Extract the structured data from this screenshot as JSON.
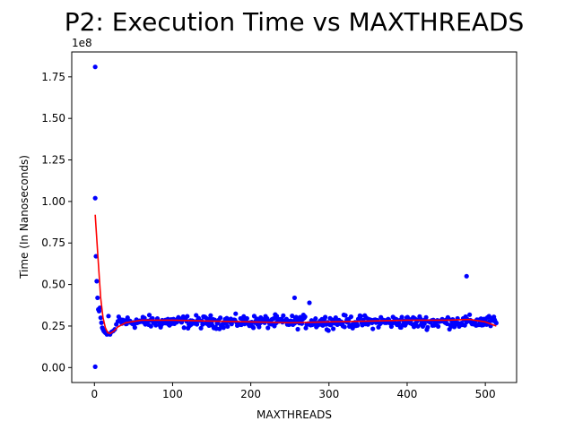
{
  "chart_data": {
    "type": "scatter",
    "title": "P2: Execution Time vs MAXTHREADS",
    "xlabel": "MAXTHREADS",
    "ylabel": "Time (In Nanoseconds)",
    "y_offset_label": "1e8",
    "xlim": [
      -29,
      540
    ],
    "ylim": [
      -0.09,
      1.9
    ],
    "x_ticks": [
      0,
      100,
      200,
      300,
      400,
      500
    ],
    "x_tick_labels": [
      "0",
      "100",
      "200",
      "300",
      "400",
      "500"
    ],
    "y_ticks": [
      0.0,
      0.25,
      0.5,
      0.75,
      1.0,
      1.25,
      1.5,
      1.75
    ],
    "y_tick_labels": [
      "0.00",
      "0.25",
      "0.50",
      "0.75",
      "1.00",
      "1.25",
      "1.50",
      "1.75"
    ],
    "grid": false,
    "scatter_color": "#0000ff",
    "trend_color": "#ff0000",
    "series": [
      {
        "kind": "scatter",
        "points": [
          [
            1,
            1.81
          ],
          [
            1,
            1.02
          ],
          [
            1,
            0.005
          ],
          [
            2,
            0.67
          ],
          [
            3,
            0.52
          ],
          [
            4,
            0.42
          ],
          [
            5,
            0.35
          ],
          [
            6,
            0.34
          ],
          [
            7,
            0.36
          ],
          [
            8,
            0.3
          ],
          [
            9,
            0.27
          ],
          [
            10,
            0.24
          ],
          [
            11,
            0.23
          ],
          [
            12,
            0.22
          ],
          [
            13,
            0.215
          ],
          [
            14,
            0.21
          ],
          [
            15,
            0.21
          ],
          [
            16,
            0.2
          ],
          [
            17,
            0.205
          ],
          [
            18,
            0.31
          ],
          [
            20,
            0.2
          ],
          [
            22,
            0.215
          ],
          [
            24,
            0.22
          ],
          [
            26,
            0.23
          ],
          [
            28,
            0.26
          ],
          [
            256,
            0.42
          ],
          [
            275,
            0.39
          ],
          [
            476,
            0.55
          ]
        ],
        "band": {
          "x_from": 30,
          "x_to": 514,
          "y_center": 0.275,
          "y_spread": 0.055,
          "count": 470
        }
      },
      {
        "kind": "trend",
        "points": [
          [
            1,
            0.92
          ],
          [
            5,
            0.63
          ],
          [
            8,
            0.42
          ],
          [
            11,
            0.3
          ],
          [
            14,
            0.24
          ],
          [
            17,
            0.21
          ],
          [
            20,
            0.205
          ],
          [
            25,
            0.22
          ],
          [
            30,
            0.245
          ],
          [
            40,
            0.27
          ],
          [
            60,
            0.285
          ],
          [
            100,
            0.285
          ],
          [
            150,
            0.28
          ],
          [
            200,
            0.275
          ],
          [
            250,
            0.27
          ],
          [
            300,
            0.275
          ],
          [
            350,
            0.28
          ],
          [
            400,
            0.285
          ],
          [
            450,
            0.285
          ],
          [
            480,
            0.29
          ],
          [
            500,
            0.275
          ],
          [
            514,
            0.25
          ]
        ]
      }
    ]
  }
}
